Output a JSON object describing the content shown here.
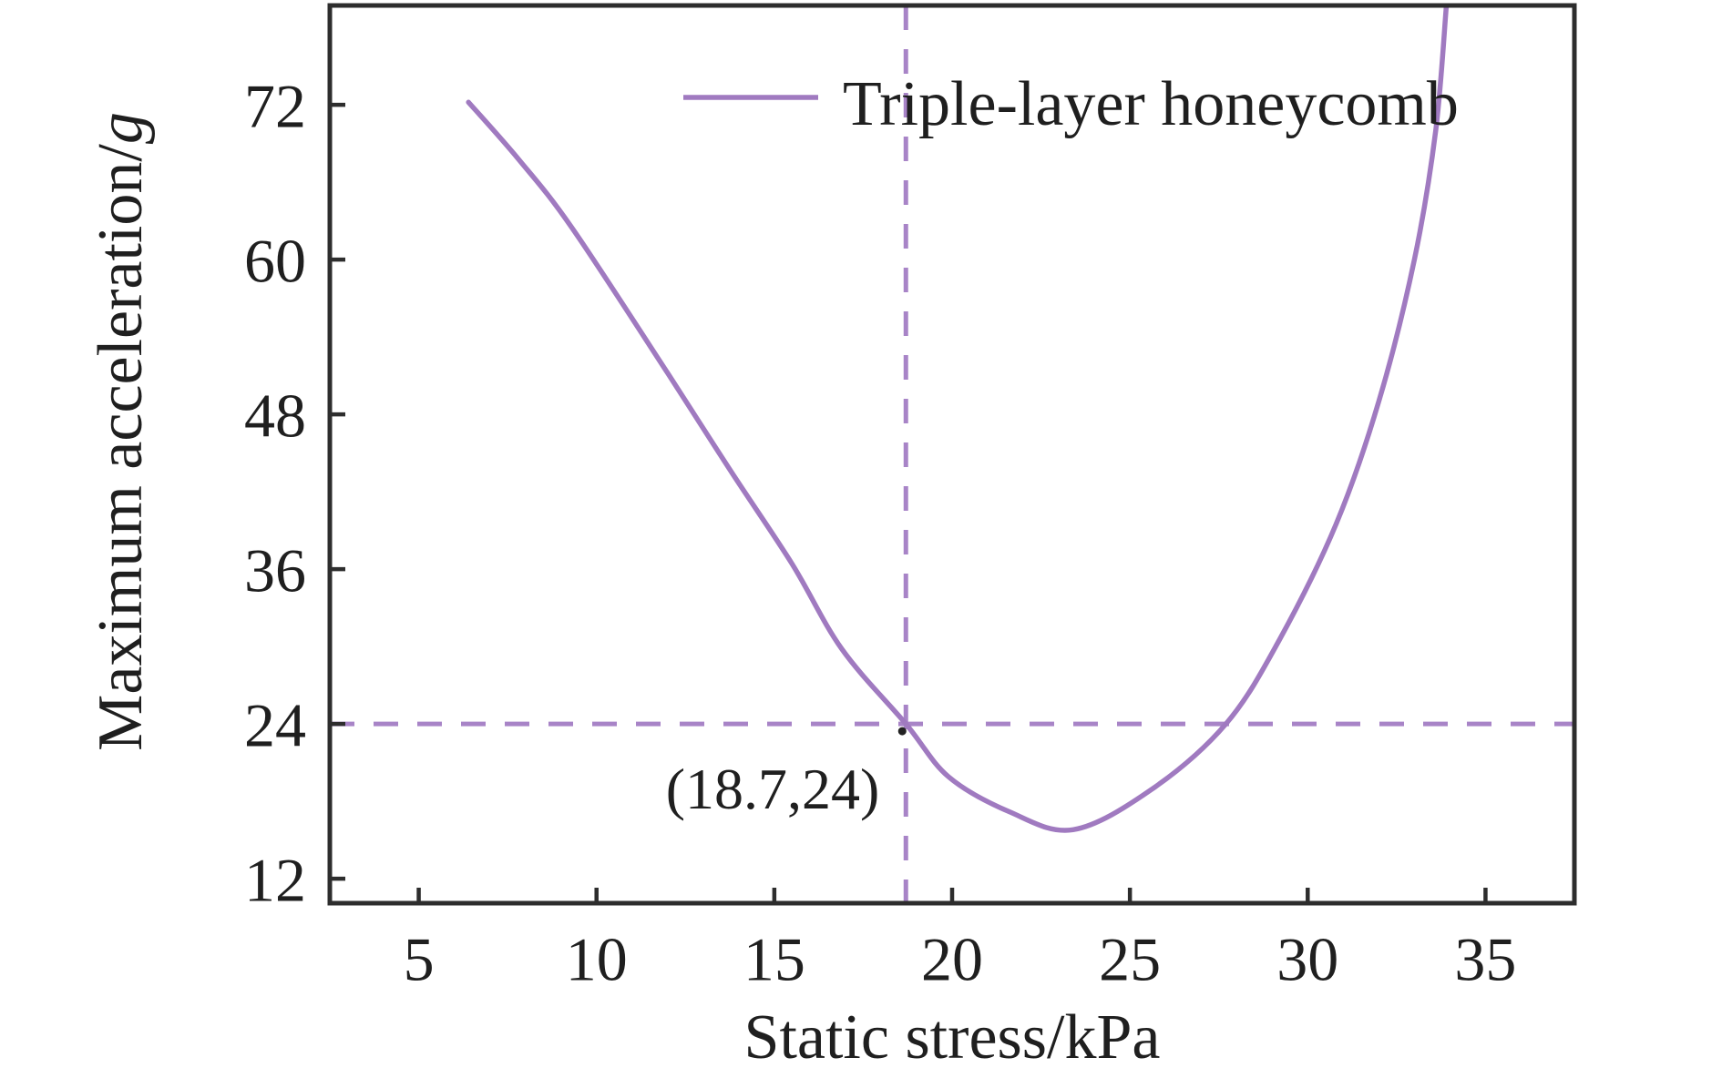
{
  "chart_data": {
    "type": "line",
    "title": "",
    "xlabel": "Static stress/kPa",
    "ylabel": "Maximum acceleration/g",
    "ylabel_parts": {
      "main": "Maximum acceleration/",
      "italic": "g"
    },
    "xlim": [
      2.5,
      37.5
    ],
    "ylim": [
      10.1,
      79.7
    ],
    "xticks": [
      5,
      10,
      15,
      20,
      25,
      30,
      35
    ],
    "yticks": [
      12,
      24,
      36,
      48,
      60,
      72
    ],
    "grid": false,
    "legend_position": "top-center",
    "series": [
      {
        "name": "Triple-layer honeycomb",
        "color": "#a07ac0",
        "points": [
          [
            6.4,
            72.2
          ],
          [
            7.8,
            67.8
          ],
          [
            9.3,
            62.5
          ],
          [
            12.0,
            51.2
          ],
          [
            13.8,
            43.5
          ],
          [
            15.5,
            36.4
          ],
          [
            16.9,
            29.8
          ],
          [
            18.7,
            24.0
          ],
          [
            19.9,
            19.9
          ],
          [
            21.6,
            17.2
          ],
          [
            23.4,
            15.8
          ],
          [
            25.6,
            18.9
          ],
          [
            27.7,
            24.0
          ],
          [
            29.2,
            30.5
          ],
          [
            30.8,
            39.5
          ],
          [
            32.0,
            49.0
          ],
          [
            33.0,
            60.0
          ],
          [
            33.6,
            70.0
          ],
          [
            33.9,
            79.7
          ]
        ]
      }
    ],
    "reference_lines": {
      "vertical_x": 18.7,
      "horizontal_y": 24,
      "style": "dashed",
      "color": "#a884c7"
    },
    "marker_point": {
      "x": 18.7,
      "y": 24,
      "color": "#222222"
    },
    "annotation": {
      "text": "(18.7,24)",
      "color": "#ed6ea0",
      "anchor_point": [
        18.7,
        24
      ]
    },
    "legend": {
      "label": "Triple-layer honeycomb"
    },
    "colors": {
      "axis": "#2d2d2d",
      "text": "#1f1f1f",
      "curve": "#a07ac0",
      "dashed": "#a884c7",
      "annotation": "#ed6ea0"
    }
  }
}
